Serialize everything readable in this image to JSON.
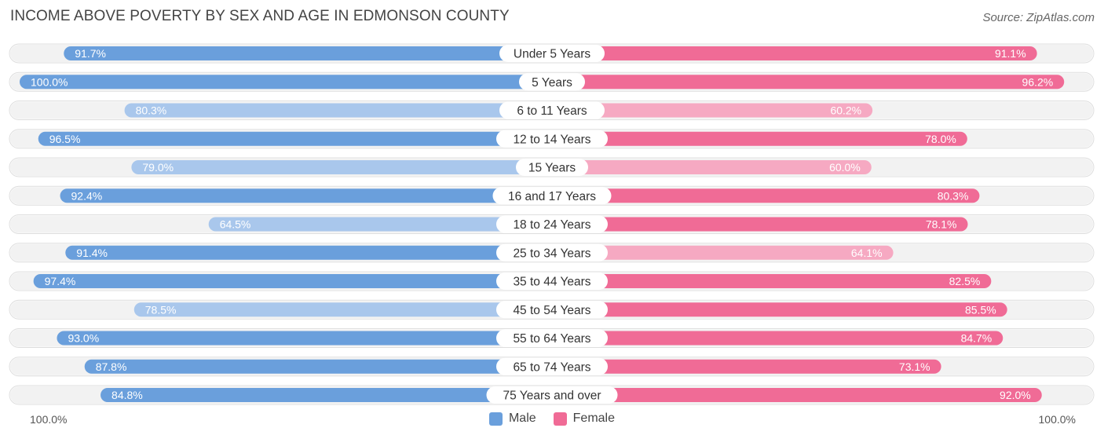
{
  "header": {
    "title": "INCOME ABOVE POVERTY BY SEX AND AGE IN EDMONSON COUNTY",
    "source": "Source: ZipAtlas.com"
  },
  "axis": {
    "left_label": "100.0%",
    "right_label": "100.0%"
  },
  "legend": {
    "male_label": "Male",
    "female_label": "Female"
  },
  "colors": {
    "male_strong": "#6a9fdc",
    "male_light": "#a9c7ec",
    "female_strong": "#f06b96",
    "female_light": "#f6a9c2",
    "track": "#eeeeee"
  },
  "chart_data": {
    "type": "bar",
    "orientation": "horizontal-diverging",
    "title": "INCOME ABOVE POVERTY BY SEX AND AGE IN EDMONSON COUNTY",
    "xlim": [
      0,
      100
    ],
    "categories": [
      "Under 5 Years",
      "5 Years",
      "6 to 11 Years",
      "12 to 14 Years",
      "15 Years",
      "16 and 17 Years",
      "18 to 24 Years",
      "25 to 34 Years",
      "35 to 44 Years",
      "45 to 54 Years",
      "55 to 64 Years",
      "65 to 74 Years",
      "75 Years and over"
    ],
    "series": [
      {
        "name": "Male",
        "values": [
          91.7,
          100.0,
          80.3,
          96.5,
          79.0,
          92.4,
          64.5,
          91.4,
          97.4,
          78.5,
          93.0,
          87.8,
          84.8
        ],
        "labels": [
          "91.7%",
          "100.0%",
          "80.3%",
          "96.5%",
          "79.0%",
          "92.4%",
          "64.5%",
          "91.4%",
          "97.4%",
          "78.5%",
          "93.0%",
          "87.8%",
          "84.8%"
        ]
      },
      {
        "name": "Female",
        "values": [
          91.1,
          96.2,
          60.2,
          78.0,
          60.0,
          80.3,
          78.1,
          64.1,
          82.5,
          85.5,
          84.7,
          73.1,
          92.0
        ],
        "labels": [
          "91.1%",
          "96.2%",
          "60.2%",
          "78.0%",
          "60.0%",
          "80.3%",
          "78.1%",
          "64.1%",
          "82.5%",
          "85.5%",
          "84.7%",
          "73.1%",
          "92.0%"
        ]
      }
    ]
  }
}
